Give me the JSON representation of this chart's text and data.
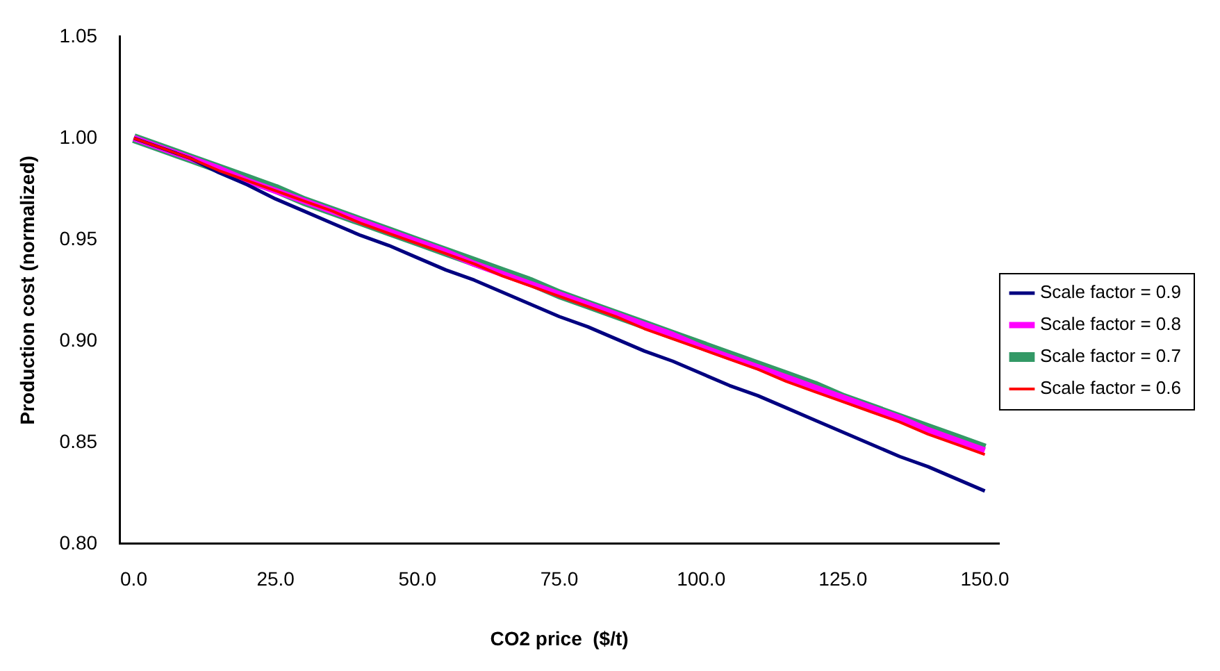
{
  "chart_data": {
    "type": "line",
    "xlabel": "CO2 price  ($/t)",
    "ylabel": "Production cost (normalized)",
    "x": [
      0,
      5,
      10,
      15,
      20,
      25,
      30,
      35,
      40,
      45,
      50,
      55,
      60,
      65,
      70,
      75,
      80,
      85,
      90,
      95,
      100,
      105,
      110,
      115,
      120,
      125,
      130,
      135,
      140,
      145,
      150
    ],
    "xlim": [
      -2.5,
      152.5
    ],
    "xticks": [
      {
        "value": 0,
        "label": "0.0"
      },
      {
        "value": 25,
        "label": "25.0"
      },
      {
        "value": 50,
        "label": "50.0"
      },
      {
        "value": 75,
        "label": "75.0"
      },
      {
        "value": 100,
        "label": "100.0"
      },
      {
        "value": 125,
        "label": "125.0"
      },
      {
        "value": 150,
        "label": "150.0"
      }
    ],
    "ylim": [
      0.8,
      1.05
    ],
    "yticks": [
      {
        "value": 0.8,
        "label": "0.80"
      },
      {
        "value": 0.85,
        "label": "0.85"
      },
      {
        "value": 0.9,
        "label": "0.90"
      },
      {
        "value": 0.95,
        "label": "0.95"
      },
      {
        "value": 1.0,
        "label": "1.00"
      },
      {
        "value": 1.05,
        "label": "1.05"
      }
    ],
    "grid": false,
    "legend": "right",
    "marker": "none",
    "line_style": "solid",
    "series": [
      {
        "name": "Scale factor = 0.9",
        "color": "#000080",
        "values": [
          1.0,
          0.995,
          0.99,
          0.983,
          0.977,
          0.97,
          0.964,
          0.958,
          0.952,
          0.947,
          0.941,
          0.935,
          0.93,
          0.924,
          0.918,
          0.912,
          0.907,
          0.901,
          0.895,
          0.89,
          0.884,
          0.878,
          0.873,
          0.867,
          0.861,
          0.855,
          0.849,
          0.843,
          0.838,
          0.832,
          0.826
        ]
      },
      {
        "name": "Scale factor = 0.8",
        "color": "#ff00ff",
        "values": [
          1.0,
          0.995,
          0.99,
          0.985,
          0.979,
          0.974,
          0.969,
          0.964,
          0.959,
          0.954,
          0.949,
          0.944,
          0.938,
          0.933,
          0.928,
          0.923,
          0.918,
          0.913,
          0.908,
          0.903,
          0.897,
          0.892,
          0.887,
          0.882,
          0.877,
          0.872,
          0.867,
          0.862,
          0.856,
          0.851,
          0.846
        ]
      },
      {
        "name": "Scale factor = 0.7",
        "color": "#339966",
        "values": [
          1.0,
          0.995,
          0.99,
          0.985,
          0.98,
          0.975,
          0.969,
          0.964,
          0.959,
          0.954,
          0.949,
          0.944,
          0.939,
          0.934,
          0.929,
          0.923,
          0.918,
          0.913,
          0.908,
          0.903,
          0.898,
          0.893,
          0.888,
          0.883,
          0.878,
          0.872,
          0.867,
          0.862,
          0.857,
          0.852,
          0.847
        ]
      },
      {
        "name": "Scale factor = 0.6",
        "color": "#ff0000",
        "values": [
          1.0,
          0.995,
          0.99,
          0.984,
          0.979,
          0.974,
          0.969,
          0.964,
          0.958,
          0.953,
          0.948,
          0.943,
          0.938,
          0.932,
          0.927,
          0.922,
          0.917,
          0.912,
          0.906,
          0.901,
          0.896,
          0.891,
          0.886,
          0.88,
          0.875,
          0.87,
          0.865,
          0.86,
          0.854,
          0.849,
          0.844
        ]
      }
    ]
  }
}
